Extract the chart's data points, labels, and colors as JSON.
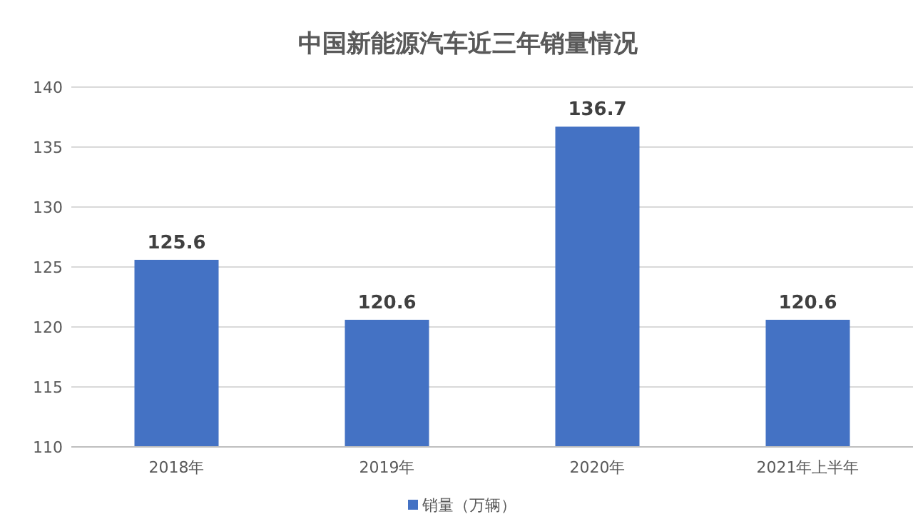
{
  "chart_data": {
    "type": "bar",
    "title": "中国新能源汽车近三年销量情况",
    "categories": [
      "2018年",
      "2019年",
      "2020年",
      "2021年上半年"
    ],
    "series": [
      {
        "name": "销量（万辆）",
        "color": "#4472c4",
        "values": [
          125.6,
          120.6,
          136.7,
          120.6
        ]
      }
    ],
    "ylim": [
      110,
      140
    ],
    "yticks": [
      110,
      115,
      120,
      125,
      130,
      135,
      140
    ],
    "grid": "y",
    "legend": "bottom",
    "data_labels": true
  }
}
